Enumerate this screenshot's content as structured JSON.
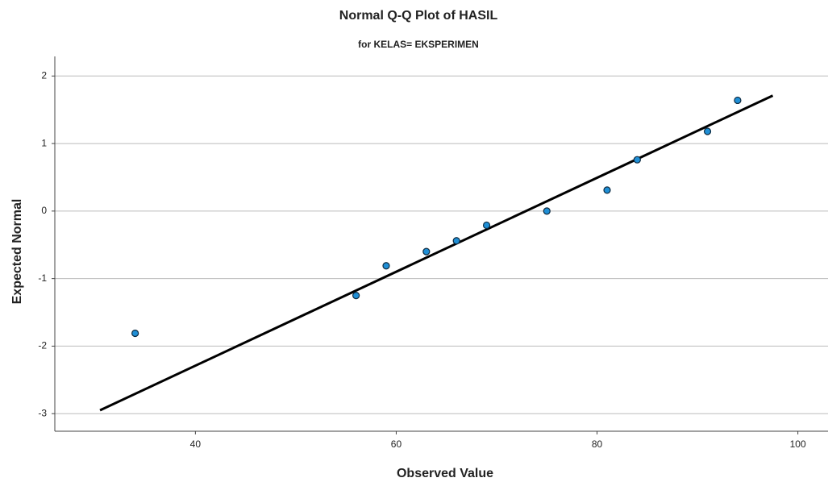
{
  "chart_data": {
    "type": "scatter",
    "title": "Normal Q-Q Plot of HASIL",
    "subtitle": "for KELAS= EKSPERIMEN",
    "x_label": "Observed Value",
    "y_label": "Expected Normal",
    "x": [
      34,
      56,
      59,
      63,
      66,
      69,
      75,
      81,
      84,
      91,
      94
    ],
    "values": [
      -1.81,
      -1.25,
      -0.81,
      -0.6,
      -0.44,
      -0.21,
      0,
      0.31,
      0.76,
      1.18,
      1.64
    ],
    "color": "#1f8fd6",
    "reference_line": {
      "x": [
        30.5,
        97.5
      ],
      "y": [
        -2.95,
        1.71
      ],
      "color": "#000000"
    },
    "xlim": [
      26,
      103
    ],
    "xticks": [
      40,
      60,
      80,
      100
    ],
    "ylim": [
      -3.26,
      2.29
    ],
    "yticks": [
      -3,
      -2,
      -1,
      0,
      1,
      2
    ],
    "grid": true
  }
}
